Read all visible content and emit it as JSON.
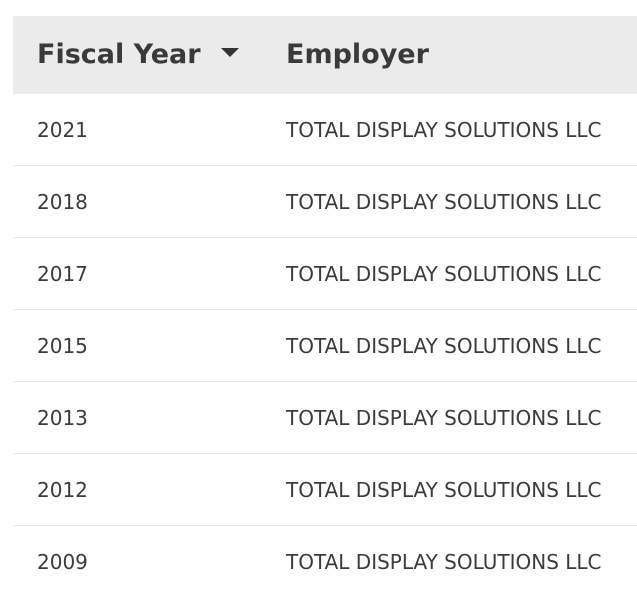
{
  "table": {
    "columns": [
      {
        "label": "Fiscal Year",
        "sort": "descending",
        "sort_icon": "caret-down-icon"
      },
      {
        "label": "Employer"
      }
    ],
    "rows": [
      {
        "fiscal_year": "2021",
        "employer": "TOTAL DISPLAY SOLUTIONS LLC"
      },
      {
        "fiscal_year": "2018",
        "employer": "TOTAL DISPLAY SOLUTIONS LLC"
      },
      {
        "fiscal_year": "2017",
        "employer": "TOTAL DISPLAY SOLUTIONS LLC"
      },
      {
        "fiscal_year": "2015",
        "employer": "TOTAL DISPLAY SOLUTIONS LLC"
      },
      {
        "fiscal_year": "2013",
        "employer": "TOTAL DISPLAY SOLUTIONS LLC"
      },
      {
        "fiscal_year": "2012",
        "employer": "TOTAL DISPLAY SOLUTIONS LLC"
      },
      {
        "fiscal_year": "2009",
        "employer": "TOTAL DISPLAY SOLUTIONS LLC"
      }
    ]
  },
  "colors": {
    "header_background": "#ebebeb",
    "header_text": "#3a3a3a",
    "cell_text": "#3c3c3c",
    "row_divider": "#e6e6e6"
  }
}
